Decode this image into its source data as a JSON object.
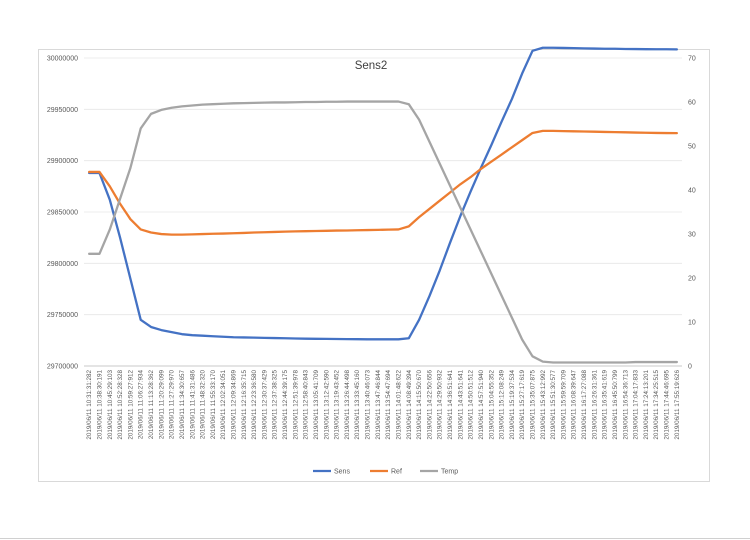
{
  "chart_data": {
    "type": "line",
    "title": "Sens2",
    "y_left": {
      "min": 29700000,
      "max": 30000000,
      "ticks": [
        "29700000",
        "29750000",
        "29800000",
        "29850000",
        "29900000",
        "29950000",
        "30000000"
      ]
    },
    "y_right": {
      "min": 0,
      "max": 70,
      "ticks": [
        "0",
        "10",
        "20",
        "30",
        "40",
        "50",
        "60",
        "70"
      ]
    },
    "x_labels": [
      "2019/06/11 10:31:31:282",
      "2019/06/11 10:38:30:191",
      "2019/06/11 10:45:29:103",
      "2019/06/11 10:52:28:328",
      "2019/06/11 10:59:27:912",
      "2019/06/11 11:06:27:934",
      "2019/06/11 11:13:28:362",
      "2019/06/11 11:20:29:099",
      "2019/06/11 11:27:29:970",
      "2019/06/11 11:34:30:657",
      "2019/06/11 11:41:31:486",
      "2019/06/11 11:48:32:320",
      "2019/06/11 11:55:33:170",
      "2019/06/11 12:02:34:051",
      "2019/06/11 12:09:34:869",
      "2019/06/11 12:16:35:715",
      "2019/06/11 12:23:36:580",
      "2019/06/11 12:30:37:429",
      "2019/06/11 12:37:38:325",
      "2019/06/11 12:44:39:175",
      "2019/06/11 12:51:39:978",
      "2019/06/11 12:58:40:843",
      "2019/06/11 13:05:41:709",
      "2019/06/11 13:12:42:590",
      "2019/06/11 13:19:43:452",
      "2019/06/11 13:26:44:498",
      "2019/06/11 13:33:45:160",
      "2019/06/11 13:40:46:073",
      "2019/06/11 13:47:46:844",
      "2019/06/11 13:54:47:694",
      "2019/06/11 14:01:48:622",
      "2019/06/11 14:08:49:394",
      "2019/06/11 14:15:50:670",
      "2019/06/11 14:22:50:656",
      "2019/06/11 14:29:50:932",
      "2019/06/11 14:36:51:641",
      "2019/06/11 14:43:51:641",
      "2019/06/11 14:50:51:512",
      "2019/06/11 14:57:51:940",
      "2019/06/11 15:04:55:352",
      "2019/06/11 15:12:08:249",
      "2019/06/11 15:19:37:534",
      "2019/06/11 15:27:17:619",
      "2019/06/11 15:35:07:875",
      "2019/06/11 15:43:12:992",
      "2019/06/11 15:51:30:577",
      "2019/06/11 15:59:59:709",
      "2019/06/11 16:08:39:647",
      "2019/06/11 16:17:27:088",
      "2019/06/11 16:26:31:361",
      "2019/06/11 16:35:41:619",
      "2019/06/11 16:45:50:799",
      "2019/06/11 16:54:36:713",
      "2019/06/11 17:04:17:833",
      "2019/06/11 17:24:13:201",
      "2019/06/11 17:34:25:515",
      "2019/06/11 17:44:46:695",
      "2019/06/11 17:55:19:626"
    ],
    "series": [
      {
        "name": "Sens",
        "color": "#4472c4",
        "axis": "left",
        "points": [
          [
            0,
            29888000
          ],
          [
            1,
            29888000
          ],
          [
            2,
            29862000
          ],
          [
            3,
            29825000
          ],
          [
            4,
            29785000
          ],
          [
            5,
            29745000
          ],
          [
            6,
            29738000
          ],
          [
            7,
            29735000
          ],
          [
            8,
            29733000
          ],
          [
            9,
            29731000
          ],
          [
            10,
            29730000
          ],
          [
            11,
            29729500
          ],
          [
            12,
            29729000
          ],
          [
            13,
            29728500
          ],
          [
            14,
            29728000
          ],
          [
            15,
            29727800
          ],
          [
            16,
            29727600
          ],
          [
            17,
            29727400
          ],
          [
            18,
            29727200
          ],
          [
            19,
            29727000
          ],
          [
            20,
            29726800
          ],
          [
            21,
            29726600
          ],
          [
            22,
            29726500
          ],
          [
            23,
            29726400
          ],
          [
            24,
            29726300
          ],
          [
            25,
            29726200
          ],
          [
            26,
            29726100
          ],
          [
            27,
            29726000
          ],
          [
            28,
            29726000
          ],
          [
            29,
            29726000
          ],
          [
            30,
            29726000
          ],
          [
            31,
            29727000
          ],
          [
            32,
            29745000
          ],
          [
            33,
            29768000
          ],
          [
            34,
            29793000
          ],
          [
            35,
            29820000
          ],
          [
            36,
            29846000
          ],
          [
            37,
            29870000
          ],
          [
            38,
            29893000
          ],
          [
            39,
            29915000
          ],
          [
            40,
            29938000
          ],
          [
            41,
            29960000
          ],
          [
            42,
            29985000
          ],
          [
            43,
            30007000
          ],
          [
            44,
            30010000
          ],
          [
            45,
            30010000
          ],
          [
            46,
            30009800
          ],
          [
            47,
            30009600
          ],
          [
            48,
            30009400
          ],
          [
            49,
            30009200
          ],
          [
            50,
            30009000
          ],
          [
            51,
            30009000
          ],
          [
            52,
            30008800
          ],
          [
            53,
            30008700
          ],
          [
            54,
            30008600
          ],
          [
            55,
            30008500
          ],
          [
            56,
            30008500
          ],
          [
            57,
            30008400
          ]
        ]
      },
      {
        "name": "Ref",
        "color": "#ed7d31",
        "axis": "left",
        "points": [
          [
            0,
            29889000
          ],
          [
            1,
            29889000
          ],
          [
            2,
            29875000
          ],
          [
            3,
            29858000
          ],
          [
            4,
            29843000
          ],
          [
            5,
            29833000
          ],
          [
            6,
            29830000
          ],
          [
            7,
            29828500
          ],
          [
            8,
            29828000
          ],
          [
            9,
            29828000
          ],
          [
            10,
            29828200
          ],
          [
            11,
            29828500
          ],
          [
            12,
            29828800
          ],
          [
            13,
            29829000
          ],
          [
            14,
            29829300
          ],
          [
            15,
            29829600
          ],
          [
            16,
            29830000
          ],
          [
            17,
            29830300
          ],
          [
            18,
            29830600
          ],
          [
            19,
            29830900
          ],
          [
            20,
            29831100
          ],
          [
            21,
            29831300
          ],
          [
            22,
            29831500
          ],
          [
            23,
            29831700
          ],
          [
            24,
            29831900
          ],
          [
            25,
            29832000
          ],
          [
            26,
            29832200
          ],
          [
            27,
            29832400
          ],
          [
            28,
            29832600
          ],
          [
            29,
            29832800
          ],
          [
            30,
            29833000
          ],
          [
            31,
            29836000
          ],
          [
            32,
            29845000
          ],
          [
            33,
            29853000
          ],
          [
            34,
            29861000
          ],
          [
            35,
            29869000
          ],
          [
            36,
            29877000
          ],
          [
            37,
            29884000
          ],
          [
            38,
            29892000
          ],
          [
            39,
            29899000
          ],
          [
            40,
            29906000
          ],
          [
            41,
            29913000
          ],
          [
            42,
            29920000
          ],
          [
            43,
            29927000
          ],
          [
            44,
            29929000
          ],
          [
            45,
            29929000
          ],
          [
            46,
            29928800
          ],
          [
            47,
            29928600
          ],
          [
            48,
            29928400
          ],
          [
            49,
            29928200
          ],
          [
            50,
            29928000
          ],
          [
            51,
            29927800
          ],
          [
            52,
            29927600
          ],
          [
            53,
            29927400
          ],
          [
            54,
            29927200
          ],
          [
            55,
            29927000
          ],
          [
            56,
            29926900
          ],
          [
            57,
            29926800
          ]
        ]
      },
      {
        "name": "Temp",
        "color": "#a5a5a5",
        "axis": "right",
        "points": [
          [
            0,
            25.5
          ],
          [
            1,
            25.5
          ],
          [
            2,
            31
          ],
          [
            3,
            38
          ],
          [
            4,
            45
          ],
          [
            5,
            54
          ],
          [
            6,
            57.3
          ],
          [
            7,
            58.2
          ],
          [
            8,
            58.7
          ],
          [
            9,
            59.0
          ],
          [
            10,
            59.2
          ],
          [
            11,
            59.4
          ],
          [
            12,
            59.5
          ],
          [
            13,
            59.6
          ],
          [
            14,
            59.7
          ],
          [
            15,
            59.75
          ],
          [
            16,
            59.8
          ],
          [
            17,
            59.85
          ],
          [
            18,
            59.9
          ],
          [
            19,
            59.9
          ],
          [
            20,
            59.95
          ],
          [
            21,
            60.0
          ],
          [
            22,
            60.0
          ],
          [
            23,
            60.05
          ],
          [
            24,
            60.05
          ],
          [
            25,
            60.1
          ],
          [
            26,
            60.1
          ],
          [
            27,
            60.1
          ],
          [
            28,
            60.1
          ],
          [
            29,
            60.1
          ],
          [
            30,
            60.1
          ],
          [
            31,
            59.5
          ],
          [
            32,
            56
          ],
          [
            33,
            51
          ],
          [
            34,
            46
          ],
          [
            35,
            41
          ],
          [
            36,
            36
          ],
          [
            37,
            31
          ],
          [
            38,
            26
          ],
          [
            39,
            21
          ],
          [
            40,
            16
          ],
          [
            41,
            11
          ],
          [
            42,
            6
          ],
          [
            43,
            2.2
          ],
          [
            44,
            1.0
          ],
          [
            45,
            0.8
          ],
          [
            46,
            0.8
          ],
          [
            47,
            0.8
          ],
          [
            48,
            0.8
          ],
          [
            49,
            0.8
          ],
          [
            50,
            0.8
          ],
          [
            51,
            0.8
          ],
          [
            52,
            0.8
          ],
          [
            53,
            0.9
          ],
          [
            54,
            0.9
          ],
          [
            55,
            0.9
          ],
          [
            56,
            0.9
          ],
          [
            57,
            0.9
          ]
        ]
      }
    ],
    "grid": true,
    "legend": "bottom"
  }
}
